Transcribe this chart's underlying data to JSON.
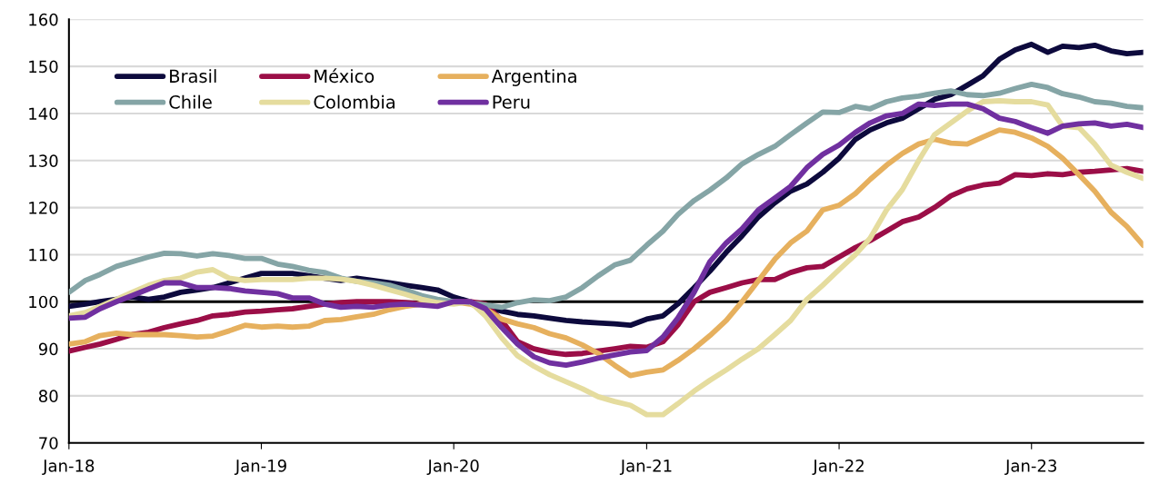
{
  "chart_data": {
    "type": "line",
    "x": [
      "2018-01",
      "2018-02",
      "2018-03",
      "2018-04",
      "2018-05",
      "2018-06",
      "2018-07",
      "2018-08",
      "2018-09",
      "2018-10",
      "2018-11",
      "2018-12",
      "2019-01",
      "2019-02",
      "2019-03",
      "2019-04",
      "2019-05",
      "2019-06",
      "2019-07",
      "2019-08",
      "2019-09",
      "2019-10",
      "2019-11",
      "2019-12",
      "2020-01",
      "2020-02",
      "2020-03",
      "2020-04",
      "2020-05",
      "2020-06",
      "2020-07",
      "2020-08",
      "2020-09",
      "2020-10",
      "2020-11",
      "2020-12",
      "2021-01",
      "2021-02",
      "2021-03",
      "2021-04",
      "2021-05",
      "2021-06",
      "2021-07",
      "2021-08",
      "2021-09",
      "2021-10",
      "2021-11",
      "2021-12",
      "2022-01",
      "2022-02",
      "2022-03",
      "2022-04",
      "2022-05",
      "2022-06",
      "2022-07",
      "2022-08",
      "2022-09",
      "2022-10",
      "2022-11",
      "2022-12",
      "2023-01",
      "2023-02",
      "2023-03",
      "2023-04",
      "2023-05",
      "2023-06",
      "2023-07",
      "2023-08"
    ],
    "series": [
      {
        "name": "Brasil",
        "color": "#0d0a3d",
        "values": [
          99,
          99.5,
          100,
          100.5,
          101,
          100.5,
          101,
          102,
          102.5,
          103,
          104,
          105,
          106,
          106,
          106,
          105.5,
          105,
          104.5,
          105,
          104.5,
          104,
          103.5,
          103,
          102.5,
          101,
          100,
          99,
          98,
          97.3,
          97,
          96.5,
          96,
          95.7,
          95.5,
          95.3,
          95,
          96.3,
          97,
          99.5,
          103,
          106.5,
          110.5,
          114,
          118,
          121,
          123.5,
          125,
          127.5,
          130.5,
          134.5,
          136.5,
          138,
          139,
          141,
          143,
          144,
          146,
          148,
          151.5,
          153.5,
          154.7,
          153,
          154.3,
          154,
          154.5,
          153.3,
          152.7,
          153
        ]
      },
      {
        "name": "México",
        "color": "#9b0e47",
        "values": [
          89.5,
          90.3,
          91,
          92,
          93,
          93.5,
          94.5,
          95.3,
          96,
          97,
          97.3,
          97.8,
          98,
          98.3,
          98.5,
          99,
          99.5,
          99.8,
          100,
          100,
          100,
          99.8,
          99.5,
          99.3,
          100,
          100,
          99.5,
          96,
          91.5,
          90,
          89.2,
          88.8,
          89,
          89.5,
          90,
          90.5,
          90.3,
          91.5,
          95,
          100,
          102,
          103,
          104,
          104.7,
          104.7,
          106.2,
          107.2,
          107.5,
          109.5,
          111.5,
          113,
          115,
          117,
          118,
          120,
          122.5,
          124,
          124.8,
          125.2,
          127,
          126.8,
          127.2,
          127,
          127.5,
          127.7,
          128,
          128.3,
          127.7
        ]
      },
      {
        "name": "Argentina",
        "color": "#e6b05e",
        "values": [
          91,
          91.5,
          92.8,
          93.3,
          93,
          93,
          93,
          92.8,
          92.5,
          92.7,
          93.8,
          95,
          94.6,
          94.8,
          94.6,
          94.8,
          96,
          96.2,
          96.8,
          97.3,
          98.3,
          99,
          99.5,
          100,
          100,
          99.5,
          98.5,
          96.3,
          95.3,
          94.5,
          93.2,
          92.3,
          90.8,
          89,
          86.5,
          84.3,
          85,
          85.5,
          87.5,
          90,
          92.8,
          96,
          100,
          104.5,
          109,
          112.5,
          115,
          119.5,
          120.5,
          123,
          126,
          129,
          131.5,
          133.5,
          134.5,
          133.7,
          133.5,
          135,
          136.5,
          136,
          134.8,
          133,
          130.5,
          127,
          123.5,
          119,
          116,
          112
        ]
      },
      {
        "name": "Chile",
        "color": "#85a5a6",
        "values": [
          102,
          104.5,
          105.8,
          107.5,
          108.5,
          109.5,
          110.3,
          110.2,
          109.7,
          110.2,
          109.8,
          109.2,
          109.2,
          108,
          107.5,
          106.7,
          106.2,
          105,
          104.3,
          104,
          103.5,
          102.5,
          101.3,
          100.5,
          100,
          99.8,
          99.3,
          98.8,
          99.8,
          100.4,
          100.2,
          101,
          103,
          105.5,
          107.8,
          108.8,
          112,
          115,
          118.5,
          121.5,
          123.7,
          126.3,
          129.3,
          131.3,
          133,
          135.5,
          138,
          140.3,
          140.2,
          141.5,
          141,
          142.5,
          143.3,
          143.7,
          144.3,
          144.8,
          144,
          143.8,
          144.3,
          145.3,
          146.2,
          145.5,
          144.2,
          143.5,
          142.5,
          142.2,
          141.5,
          141.2
        ]
      },
      {
        "name": "Colombia",
        "color": "#e5dc9e",
        "values": [
          97,
          97.7,
          99,
          100.5,
          102,
          103.5,
          104.5,
          105,
          106.3,
          106.8,
          105,
          104.5,
          104.7,
          104.7,
          104.7,
          105,
          105,
          104.8,
          104.3,
          103.5,
          102.5,
          101.6,
          100.5,
          99.8,
          99.5,
          100,
          97,
          92.3,
          88.5,
          86.3,
          84.5,
          83,
          81.5,
          79.8,
          78.8,
          78,
          76,
          76,
          78.3,
          81,
          83.3,
          85.5,
          87.8,
          90,
          93,
          96,
          100.5,
          103.5,
          106.8,
          110,
          113.5,
          119.5,
          123.8,
          130,
          135.5,
          138,
          140.5,
          142.5,
          142.7,
          142.5,
          142.5,
          141.8,
          137.3,
          137,
          133.5,
          129,
          127.5,
          126.2
        ]
      },
      {
        "name": "Peru",
        "color": "#7030a0",
        "values": [
          96.5,
          96.7,
          98.5,
          100,
          101.3,
          102.7,
          104,
          104,
          103,
          103,
          102.8,
          102.3,
          102,
          101.7,
          100.8,
          100.8,
          99.5,
          98.8,
          99,
          98.8,
          99.3,
          99.5,
          99.3,
          99,
          100,
          100,
          98.5,
          94.5,
          91,
          88.3,
          87,
          86.5,
          87.2,
          88,
          88.7,
          89.3,
          89.6,
          92.5,
          96.5,
          102,
          108.5,
          112.5,
          115.5,
          119.5,
          122,
          124.5,
          128.5,
          131.3,
          133.3,
          136,
          138,
          139.5,
          140,
          142,
          141.7,
          142,
          142,
          141,
          139,
          138.3,
          137,
          135.8,
          137.3,
          137.8,
          138,
          137.3,
          137.7,
          137
        ]
      }
    ],
    "xlim": [
      "2018-01",
      "2023-08"
    ],
    "xticks": [
      {
        "value": "2018-01",
        "label": "Jan-18"
      },
      {
        "value": "2019-01",
        "label": "Jan-19"
      },
      {
        "value": "2020-01",
        "label": "Jan-20"
      },
      {
        "value": "2021-01",
        "label": "Jan-21"
      },
      {
        "value": "2022-01",
        "label": "Jan-22"
      },
      {
        "value": "2023-01",
        "label": "Jan-23"
      }
    ],
    "ylim": [
      70,
      160
    ],
    "yticks": [
      70,
      80,
      90,
      100,
      110,
      120,
      130,
      140,
      150,
      160
    ],
    "ref_lines": [
      {
        "axis": "y",
        "value": 100,
        "color": "#000000"
      }
    ],
    "grid": "y",
    "legend": "top left",
    "marker": "none",
    "line_style": "solid"
  }
}
